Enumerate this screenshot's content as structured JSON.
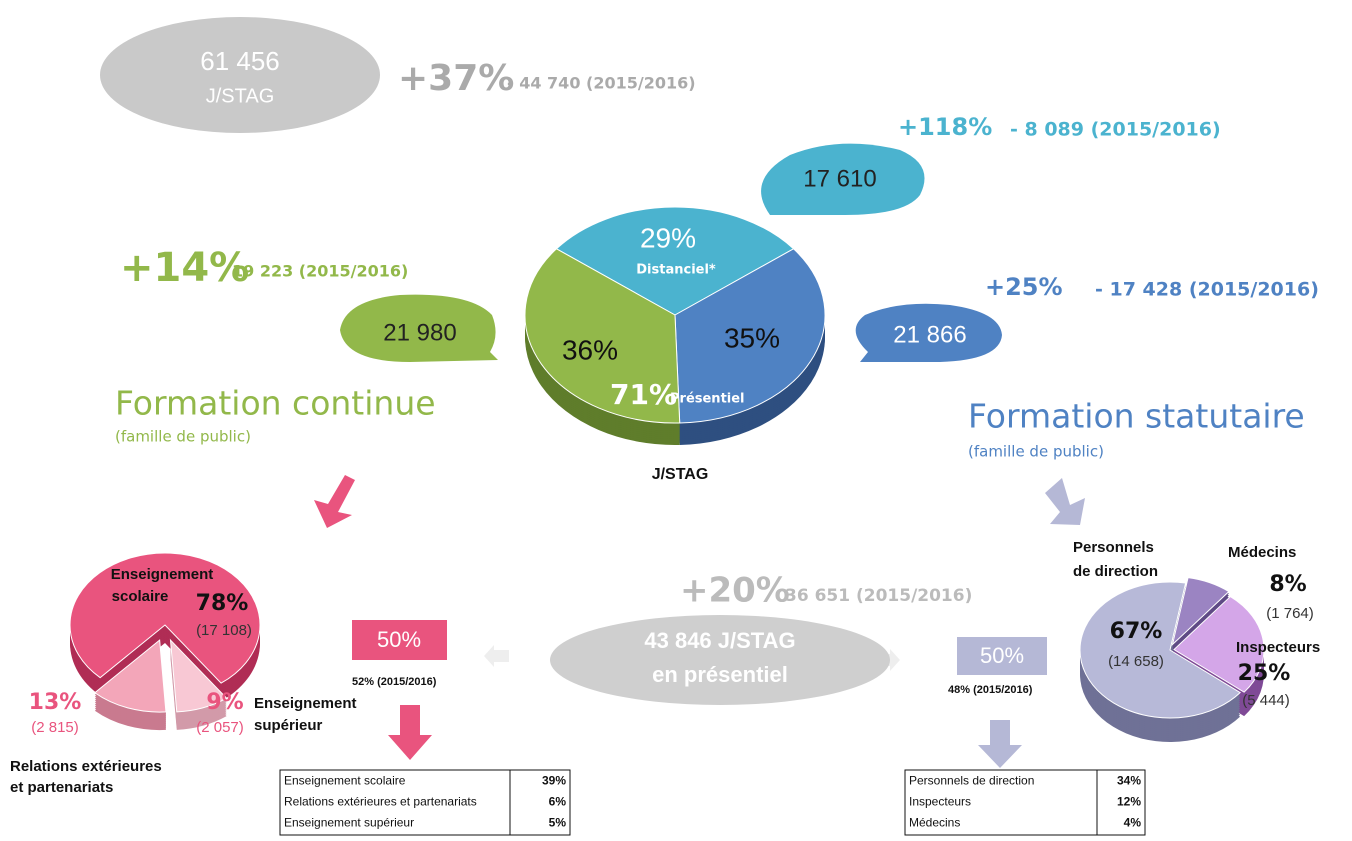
{
  "total": {
    "value": "61 456",
    "unit": "J/STAG",
    "change": "+37%",
    "previous": "- 44 740 (2015/2016)"
  },
  "distanciel": {
    "value": "17 610",
    "change": "+118%",
    "previous": "- 8 089  (2015/2016)"
  },
  "continue": {
    "value": "21 980",
    "change": "+14%",
    "previous": "19 223 (2015/2016)",
    "title": "Formation continue",
    "subtitle": "(famille de public)"
  },
  "statutaire": {
    "value": "21 866",
    "change": "+25%",
    "previous": "- 17 428 (2015/2016)",
    "title": "Formation statutaire",
    "subtitle": "(famille de public)"
  },
  "main_pie": {
    "label": "J/STAG",
    "slices": [
      {
        "name": "Distanciel*",
        "label": "29%",
        "value": 29
      },
      {
        "label": "35%",
        "value": 35
      },
      {
        "label": "36%",
        "value": 36
      }
    ],
    "presentiel": {
      "name": "Présentiel",
      "label": "71%"
    }
  },
  "presentiel": {
    "change": "+20%",
    "previous": "36 651 (2015/2016)",
    "line1": "43 846 J/STAG",
    "line2": "en présentiel"
  },
  "left_share": {
    "label": "50%",
    "previous": "52%  (2015/2016)"
  },
  "right_share": {
    "label": "50%",
    "previous": "48%  (2015/2016)"
  },
  "left_pie": {
    "slices": [
      {
        "name": [
          "Enseignement",
          "scolaire"
        ],
        "label": "78%",
        "value": 78,
        "count": "(17 108)"
      },
      {
        "name": [
          "Relations extérieures",
          "et partenariats"
        ],
        "label": "13%",
        "value": 13,
        "count": "(2 815)"
      },
      {
        "name": [
          "Enseignement",
          "supérieur"
        ],
        "label": "9%",
        "value": 9,
        "count": "(2 057)"
      }
    ]
  },
  "right_pie": {
    "slices": [
      {
        "name": [
          "Personnels",
          "de direction"
        ],
        "label": "67%",
        "value": 67,
        "count": "(14 658)"
      },
      {
        "name": [
          "Médecins"
        ],
        "label": "8%",
        "value": 8,
        "count": "(1 764)"
      },
      {
        "name": [
          "Inspecteurs"
        ],
        "label": "25%",
        "value": 25,
        "count": "(5 444)"
      }
    ]
  },
  "left_table": {
    "rows": [
      [
        "Enseignement scolaire",
        "39%"
      ],
      [
        "Relations extérieures et partenariats",
        "6%"
      ],
      [
        "Enseignement supérieur",
        "5%"
      ]
    ]
  },
  "right_table": {
    "rows": [
      [
        "Personnels de direction",
        "34%"
      ],
      [
        "Inspecteurs",
        "12%"
      ],
      [
        "Médecins",
        "4%"
      ]
    ]
  }
}
